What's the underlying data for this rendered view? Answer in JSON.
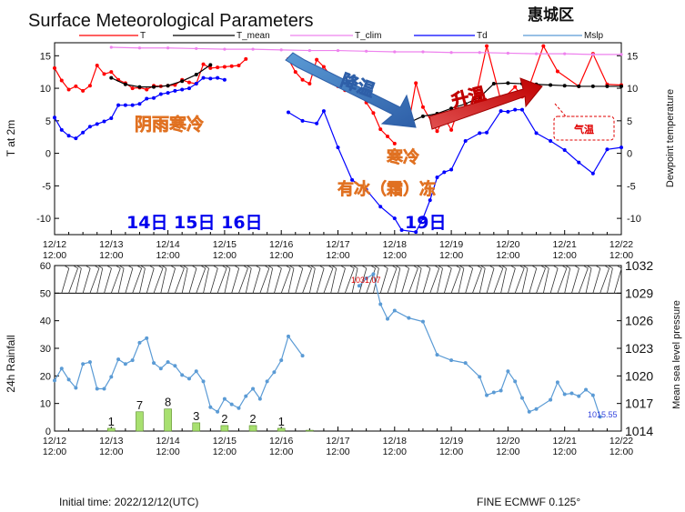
{
  "title": "Surface Meteorological Parameters",
  "region": "惠城区",
  "legend": [
    {
      "label": "T",
      "color": "#ff0000"
    },
    {
      "label": "T_mean",
      "color": "#000000"
    },
    {
      "label": "T_clim",
      "color": "#ee82ee"
    },
    {
      "label": "Td",
      "color": "#0000ff"
    },
    {
      "label": "Mslp",
      "color": "#5b9bd5"
    }
  ],
  "footer": {
    "initial_time": "Initial time: 2022/12/12(UTC)",
    "model": "FINE ECMWF 0.125°"
  },
  "annotations": {
    "cold_rain": "阴雨寒冷",
    "cooling": "降温",
    "warming": "升温",
    "cold": "寒冷",
    "frost": "有冰（霜）冻",
    "days_a": "14日 15日 16日",
    "day_19": "19日",
    "temp_tag": "气温"
  },
  "chart_data": [
    {
      "type": "line",
      "title": "Surface Meteorological Parameters",
      "ylabel": "T at 2m",
      "y2label": "Dewpoint temperature",
      "ylim": [
        -12.5,
        17
      ],
      "yticks": [
        -10,
        -5,
        0,
        5,
        10,
        15
      ],
      "xlim": [
        0,
        10
      ],
      "xtick_labels": [
        [
          "12/12",
          "12:00"
        ],
        [
          "12/13",
          "12:00"
        ],
        [
          "12/14",
          "12:00"
        ],
        [
          "12/15",
          "12:00"
        ],
        [
          "12/16",
          "12:00"
        ],
        [
          "12/17",
          "12:00"
        ],
        [
          "12/18",
          "12:00"
        ],
        [
          "12/19",
          "12:00"
        ],
        [
          "12/20",
          "12:00"
        ],
        [
          "12/21",
          "12:00"
        ],
        [
          "12/22",
          "12:00"
        ]
      ],
      "series": [
        {
          "name": "T",
          "color": "#ff0000",
          "segments": [
            [
              [
                0,
                13.1
              ],
              [
                0.125,
                11.2
              ],
              [
                0.25,
                9.8
              ],
              [
                0.375,
                10.3
              ],
              [
                0.5,
                9.6
              ],
              [
                0.625,
                10.4
              ],
              [
                0.75,
                13.5
              ],
              [
                0.875,
                12.2
              ],
              [
                1,
                12.5
              ],
              [
                1.125,
                11.3
              ],
              [
                1.25,
                10.8
              ],
              [
                1.375,
                10
              ],
              [
                1.5,
                10.1
              ],
              [
                1.625,
                9.8
              ],
              [
                1.75,
                10.4
              ],
              [
                1.875,
                10.3
              ],
              [
                2,
                10.4
              ],
              [
                2.125,
                10.5
              ],
              [
                2.25,
                11.3
              ],
              [
                2.375,
                10.9
              ],
              [
                2.5,
                10.7
              ],
              [
                2.625,
                13.7
              ],
              [
                2.75,
                13.1
              ],
              [
                2.875,
                13.2
              ],
              [
                3,
                13.3
              ],
              [
                3.125,
                13.4
              ],
              [
                3.25,
                13.5
              ],
              [
                3.375,
                14.5
              ]
            ],
            [
              [
                4.125,
                14.5
              ],
              [
                4.25,
                12.5
              ],
              [
                4.375,
                11.3
              ],
              [
                4.5,
                10.7
              ],
              [
                4.625,
                14.4
              ],
              [
                4.75,
                13.3
              ],
              [
                4.875,
                11.9
              ],
              [
                5,
                10.3
              ],
              [
                5.125,
                9.7
              ],
              [
                5.25,
                9.9
              ],
              [
                5.375,
                9.2
              ],
              [
                5.5,
                7.8
              ],
              [
                5.625,
                6.2
              ],
              [
                5.75,
                3.7
              ],
              [
                5.875,
                2.6
              ],
              [
                6,
                1.5
              ]
            ],
            [
              [
                6.25,
                4.7
              ],
              [
                6.375,
                10.8
              ],
              [
                6.5,
                7.1
              ],
              [
                6.75,
                3.4
              ],
              [
                6.875,
                5.5
              ],
              [
                7,
                3.6
              ],
              [
                7.125,
                6.8
              ],
              [
                7.375,
                6.4
              ],
              [
                7.625,
                16.5
              ],
              [
                7.875,
                8.1
              ],
              [
                8.125,
                10.2
              ],
              [
                8.25,
                8.7
              ],
              [
                8.375,
                10.3
              ],
              [
                8.625,
                16.5
              ],
              [
                8.875,
                12.6
              ],
              [
                9.25,
                10.3
              ],
              [
                9.5,
                15.3
              ],
              [
                9.75,
                10.6
              ],
              [
                10,
                10.5
              ]
            ]
          ]
        },
        {
          "name": "T_mean",
          "color": "#000000",
          "segments": [
            [
              [
                1,
                11.6
              ],
              [
                1.25,
                10.6
              ],
              [
                1.5,
                10.2
              ],
              [
                1.75,
                10.2
              ],
              [
                2,
                10.4
              ],
              [
                2.25,
                11.1
              ],
              [
                2.5,
                12.1
              ],
              [
                2.75,
                13.6
              ]
            ],
            [
              [
                6.25,
                4.7
              ],
              [
                6.5,
                5.7
              ],
              [
                6.75,
                6.1
              ],
              [
                7,
                6.9
              ],
              [
                7.25,
                7.6
              ],
              [
                7.5,
                8.6
              ],
              [
                7.75,
                10.7
              ],
              [
                8,
                10.8
              ],
              [
                8.25,
                10.7
              ],
              [
                8.5,
                10.6
              ],
              [
                8.75,
                10.5
              ],
              [
                9,
                10.4
              ],
              [
                9.25,
                10.3
              ],
              [
                9.5,
                10.3
              ],
              [
                9.75,
                10.3
              ],
              [
                10,
                10.3
              ]
            ]
          ]
        },
        {
          "name": "T_clim",
          "color": "#ee82ee",
          "segments": [
            [
              [
                1,
                16.3
              ],
              [
                1.5,
                16.2
              ],
              [
                2,
                16.2
              ],
              [
                2.5,
                16.1
              ],
              [
                3,
                16
              ],
              [
                3.5,
                16
              ],
              [
                4,
                15.9
              ],
              [
                4.5,
                15.8
              ],
              [
                5,
                15.8
              ],
              [
                5.5,
                15.7
              ],
              [
                6,
                15.6
              ],
              [
                6.5,
                15.6
              ],
              [
                7,
                15.5
              ],
              [
                7.5,
                15.5
              ],
              [
                8,
                15.4
              ],
              [
                8.5,
                15.3
              ],
              [
                9,
                15.3
              ],
              [
                9.5,
                15.2
              ],
              [
                10,
                15.2
              ]
            ]
          ]
        },
        {
          "name": "Td",
          "color": "#0000ff",
          "segments": [
            [
              [
                0,
                5.5
              ],
              [
                0.125,
                3.6
              ],
              [
                0.25,
                2.7
              ],
              [
                0.375,
                2.3
              ],
              [
                0.5,
                3.2
              ],
              [
                0.625,
                4.1
              ],
              [
                0.75,
                4.5
              ],
              [
                0.875,
                4.9
              ],
              [
                1,
                5.4
              ],
              [
                1.125,
                7.4
              ],
              [
                1.25,
                7.4
              ],
              [
                1.375,
                7.4
              ],
              [
                1.5,
                7.6
              ],
              [
                1.625,
                8.4
              ],
              [
                1.75,
                8.5
              ],
              [
                1.875,
                9.1
              ],
              [
                2,
                9.3
              ],
              [
                2.125,
                9.6
              ],
              [
                2.25,
                9.8
              ],
              [
                2.375,
                10
              ],
              [
                2.5,
                10.7
              ],
              [
                2.625,
                11.6
              ],
              [
                2.75,
                11.5
              ],
              [
                2.875,
                11.6
              ],
              [
                3,
                11.3
              ]
            ],
            [
              [
                4.125,
                6.3
              ],
              [
                4.375,
                5
              ],
              [
                4.625,
                4.6
              ],
              [
                4.75,
                6.5
              ],
              [
                5,
                0.9
              ],
              [
                5.25,
                -4.1
              ],
              [
                5.5,
                -5.6
              ],
              [
                5.75,
                -8.2
              ],
              [
                6,
                -10
              ],
              [
                6.125,
                -11.8
              ],
              [
                6.375,
                -12.1
              ],
              [
                6.5,
                -10
              ],
              [
                6.625,
                -7.2
              ],
              [
                6.75,
                -3.7
              ],
              [
                6.875,
                -2.9
              ],
              [
                7,
                -2.5
              ],
              [
                7.25,
                1.9
              ],
              [
                7.5,
                3.1
              ],
              [
                7.625,
                3.2
              ],
              [
                7.875,
                6.5
              ],
              [
                8,
                6.4
              ],
              [
                8.125,
                6.7
              ],
              [
                8.25,
                6.7
              ],
              [
                8.5,
                3.1
              ],
              [
                8.75,
                1.9
              ],
              [
                9,
                0.5
              ],
              [
                9.25,
                -1.4
              ],
              [
                9.5,
                -3.1
              ],
              [
                9.75,
                0.6
              ],
              [
                10,
                0.9
              ]
            ]
          ]
        }
      ],
      "annotation_text": [
        "阴雨寒冷",
        "降温",
        "升温",
        "寒冷",
        "有冰（霜）冻",
        "14日 15日 16日",
        "19日",
        "气温"
      ]
    },
    {
      "type": "bar",
      "ylabel": "24h Rainfall",
      "ylim": [
        0,
        60
      ],
      "yticks": [
        0,
        10,
        20,
        30,
        40,
        50,
        60
      ],
      "bars": [
        {
          "x": 1,
          "value": 1,
          "label": "1"
        },
        {
          "x": 1.5,
          "value": 7,
          "label": "7"
        },
        {
          "x": 2,
          "value": 8,
          "label": "8"
        },
        {
          "x": 2.5,
          "value": 3,
          "label": "3"
        },
        {
          "x": 3,
          "value": 2,
          "label": "2"
        },
        {
          "x": 3.5,
          "value": 2,
          "label": "2"
        },
        {
          "x": 4,
          "value": 1,
          "label": "1"
        },
        {
          "x": 4.5,
          "value": 0.3,
          "label": ""
        }
      ],
      "bar_color": "#a8e070"
    },
    {
      "type": "line",
      "name": "Mslp",
      "y2label": "Mean sea level pressure",
      "y2lim": [
        1014,
        1032
      ],
      "y2ticks": [
        1014,
        1017,
        1020,
        1023,
        1026,
        1029,
        1032
      ],
      "max_label": "1031.07",
      "min_label": "1015.55",
      "segments": [
        [
          [
            0,
            1019.5
          ],
          [
            0.125,
            1020.8
          ],
          [
            0.25,
            1019.6
          ],
          [
            0.375,
            1018.7
          ],
          [
            0.5,
            1021.3
          ],
          [
            0.625,
            1021.5
          ],
          [
            0.75,
            1018.6
          ],
          [
            0.875,
            1018.6
          ],
          [
            1,
            1019.9
          ],
          [
            1.125,
            1021.8
          ],
          [
            1.25,
            1021.3
          ],
          [
            1.375,
            1021.7
          ],
          [
            1.5,
            1023.6
          ],
          [
            1.625,
            1024.1
          ],
          [
            1.75,
            1021.4
          ],
          [
            1.875,
            1020.8
          ],
          [
            2,
            1021.5
          ],
          [
            2.125,
            1021.1
          ],
          [
            2.25,
            1020.1
          ],
          [
            2.375,
            1019.7
          ],
          [
            2.5,
            1020.5
          ],
          [
            2.625,
            1019.4
          ],
          [
            2.75,
            1016.6
          ],
          [
            2.875,
            1016.1
          ],
          [
            3,
            1017.5
          ],
          [
            3.125,
            1016.9
          ],
          [
            3.25,
            1016.5
          ],
          [
            3.375,
            1017.8
          ],
          [
            3.5,
            1018.6
          ],
          [
            3.625,
            1017.5
          ],
          [
            3.75,
            1019.4
          ],
          [
            3.875,
            1020.4
          ],
          [
            4,
            1021.7
          ],
          [
            4.125,
            1024.3
          ],
          [
            4.375,
            1022.2
          ]
        ],
        [
          [
            5.375,
            1029.8
          ],
          [
            5.5,
            1030.6
          ],
          [
            5.625,
            1031.07
          ],
          [
            5.75,
            1027.8
          ],
          [
            5.875,
            1026.2
          ],
          [
            6,
            1027.1
          ],
          [
            6.25,
            1026.3
          ],
          [
            6.5,
            1025.9
          ],
          [
            6.75,
            1022.3
          ],
          [
            7,
            1021.7
          ],
          [
            7.25,
            1021.4
          ],
          [
            7.5,
            1019.9
          ],
          [
            7.625,
            1017.9
          ],
          [
            7.75,
            1018.2
          ],
          [
            7.875,
            1018.4
          ],
          [
            8,
            1020.5
          ],
          [
            8.125,
            1019.4
          ],
          [
            8.25,
            1017.6
          ],
          [
            8.375,
            1016.1
          ],
          [
            8.5,
            1016.4
          ],
          [
            8.75,
            1017.4
          ],
          [
            8.875,
            1019.3
          ],
          [
            9,
            1018
          ],
          [
            9.125,
            1018.1
          ],
          [
            9.25,
            1017.8
          ],
          [
            9.375,
            1018.5
          ],
          [
            9.5,
            1017.9
          ],
          [
            9.625,
            1015.55
          ]
        ]
      ]
    }
  ]
}
